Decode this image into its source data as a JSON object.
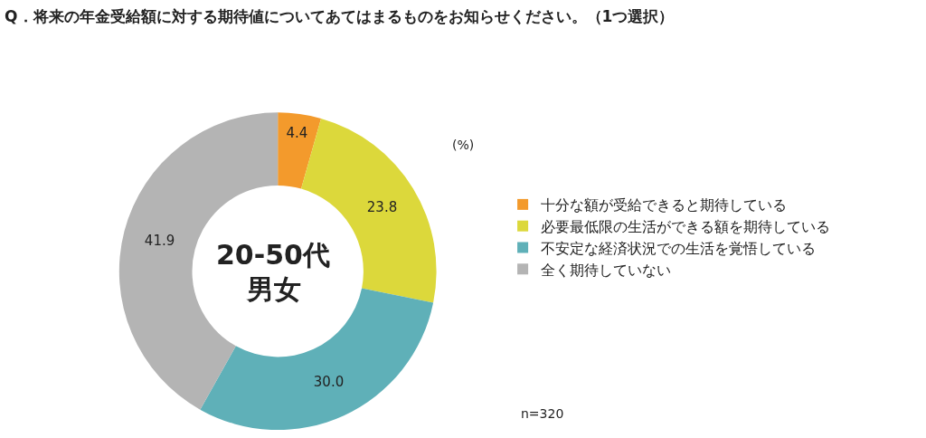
{
  "chart_data": {
    "type": "donut",
    "title": "Q．将来の年金受給額に対する期待値についてあてはまるものをお知らせください。（1つ選択）",
    "categories": [
      "十分な額が受給できると期待している",
      "必要最低限の生活ができる額を期待している",
      "不安定な経済状況での生活を覚悟している",
      "全く期待していない"
    ],
    "values": [
      4.4,
      23.8,
      30.0,
      41.9
    ],
    "value_labels": [
      "4.4",
      "23.8",
      "30.0",
      "41.9"
    ],
    "colors": [
      "#f39a2c",
      "#dcd83b",
      "#5fb0b8",
      "#b4b4b4"
    ],
    "legend": "right",
    "annotations": [
      "20-50代",
      "男女",
      "(%)",
      "n=320"
    ]
  }
}
